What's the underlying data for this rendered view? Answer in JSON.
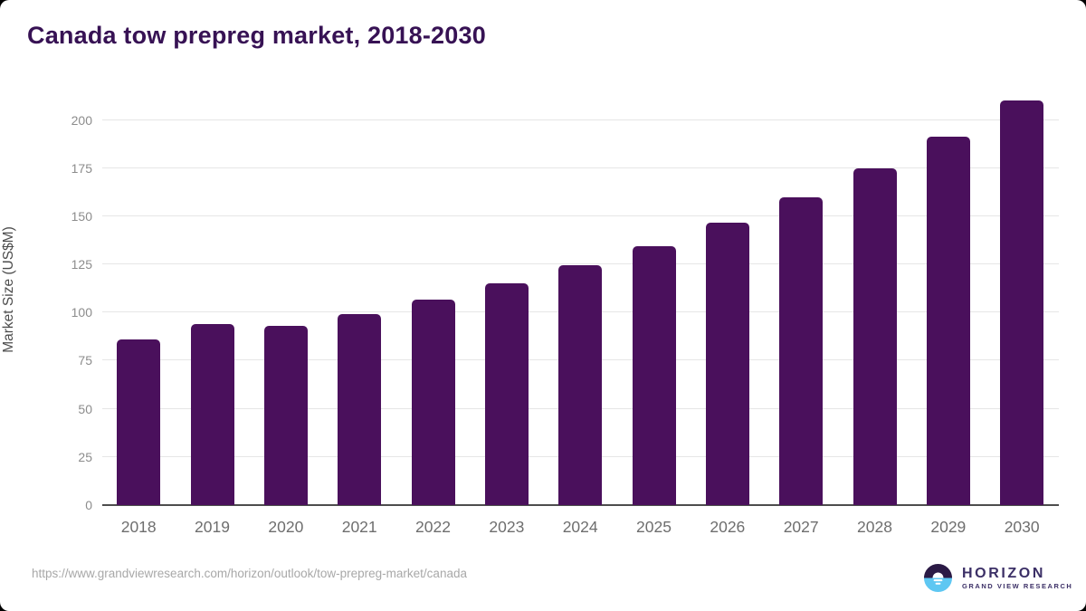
{
  "chart_data": {
    "type": "bar",
    "title": "Canada tow prepreg market, 2018-2030",
    "ylabel": "Market Size (US$M)",
    "xlabel": "",
    "categories": [
      "2018",
      "2019",
      "2020",
      "2021",
      "2022",
      "2023",
      "2024",
      "2025",
      "2026",
      "2027",
      "2028",
      "2029",
      "2030"
    ],
    "values": [
      86,
      94,
      93,
      99,
      106.5,
      115,
      124.5,
      134.5,
      146.5,
      160,
      175,
      191.5,
      210
    ],
    "ylim": [
      0,
      200
    ],
    "ytick_step": 25,
    "grid": true,
    "legend": "none",
    "bar_color": "#4a105c"
  },
  "colors": {
    "title": "#371254",
    "bar": "#4a105c",
    "gridline": "#e6e6e6",
    "axis_line": "#4d4d4d",
    "y_tick_label": "#8c8c8c",
    "x_tick_label": "#6e6e6e",
    "source_text": "#a8a8a8",
    "logo_dark": "#2b1a45",
    "logo_blue": "#5ec7f2",
    "logo_text": "#3b2f66"
  },
  "footer": {
    "source_url": "https://www.grandviewresearch.com/horizon/outlook/tow-prepreg-market/canada",
    "logo": {
      "name": "HORIZON",
      "tagline": "GRAND VIEW RESEARCH"
    }
  }
}
